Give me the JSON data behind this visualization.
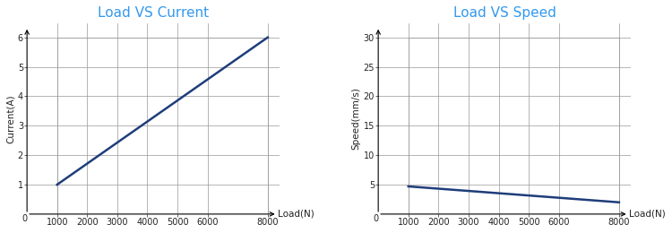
{
  "chart1": {
    "title": "Load VS Current",
    "xlabel": "Load(N)",
    "ylabel": "Current(A)",
    "x_data": [
      1000,
      8000
    ],
    "y_data": [
      1.0,
      6.0
    ],
    "xlim": [
      0,
      8000
    ],
    "ylim": [
      0,
      6
    ],
    "xmin_plot": 1000,
    "xmax_plot": 8000,
    "xticks": [
      1000,
      2000,
      3000,
      4000,
      5000,
      6000,
      8000
    ],
    "yticks": [
      1,
      2,
      3,
      4,
      5,
      6
    ],
    "line_color": "#1f3d7a",
    "title_color": "#3399ee"
  },
  "chart2": {
    "title": "Load VS Speed",
    "xlabel": "Load(N)",
    "ylabel": "Speed(mm/s)",
    "x_data": [
      1000,
      8000
    ],
    "y_data": [
      4.7,
      2.0
    ],
    "xlim": [
      0,
      8000
    ],
    "ylim": [
      0,
      30
    ],
    "xmin_plot": 1000,
    "xmax_plot": 8000,
    "xticks": [
      1000,
      2000,
      3000,
      4000,
      5000,
      6000,
      8000
    ],
    "yticks": [
      5,
      10,
      15,
      20,
      25,
      30
    ],
    "line_color": "#1f3d7a",
    "title_color": "#3399ee"
  },
  "bg_color": "#ffffff",
  "grid_color": "#999999",
  "tick_color": "#222222",
  "title_fontsize": 11,
  "label_fontsize": 7.5,
  "tick_fontsize": 7
}
